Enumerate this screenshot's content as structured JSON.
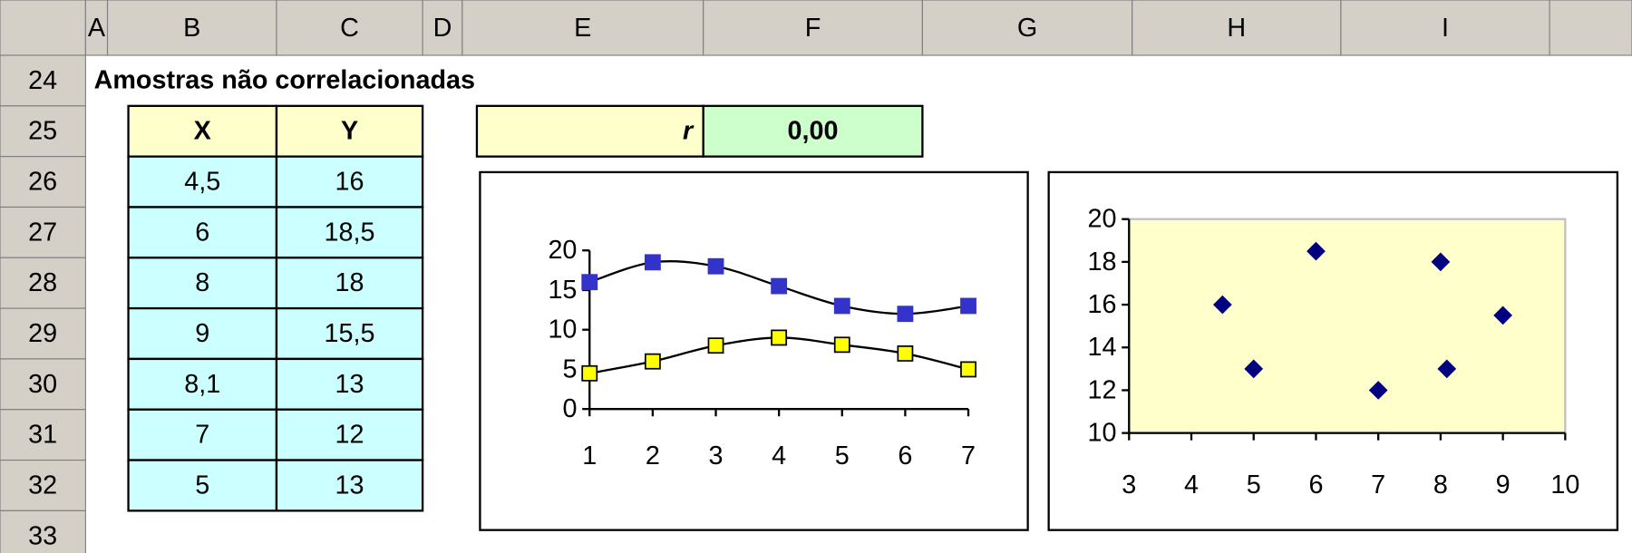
{
  "columns": [
    "A",
    "B",
    "C",
    "D",
    "E",
    "F",
    "G",
    "H",
    "I"
  ],
  "rows": [
    24,
    25,
    26,
    27,
    28,
    29,
    30,
    31,
    32,
    33
  ],
  "title": "Amostras não correlacionadas",
  "table": {
    "header": [
      "X",
      "Y"
    ],
    "rows": [
      [
        "4,5",
        "16"
      ],
      [
        "6",
        "18,5"
      ],
      [
        "8",
        "18"
      ],
      [
        "9",
        "15,5"
      ],
      [
        "8,1",
        "13"
      ],
      [
        "7",
        "12"
      ],
      [
        "5",
        "13"
      ]
    ]
  },
  "r": {
    "label": "r",
    "value": "0,00"
  },
  "chart_data": [
    {
      "type": "line",
      "categories": [
        1,
        2,
        3,
        4,
        5,
        6,
        7
      ],
      "series": [
        {
          "color": "#3333cc",
          "values": [
            16,
            18.5,
            18,
            15.5,
            13,
            12,
            13
          ]
        },
        {
          "color": "#ffff00",
          "values": [
            4.5,
            6,
            8,
            9,
            8.1,
            7,
            5
          ]
        }
      ],
      "ylim": [
        0,
        20
      ],
      "yticks": [
        0,
        5,
        10,
        15,
        20
      ],
      "smooth": true
    },
    {
      "type": "scatter",
      "color": "#000080",
      "plot_background": "#ffffcc",
      "x": [
        4.5,
        6,
        8,
        9,
        8.1,
        7,
        5
      ],
      "values": [
        16,
        18.5,
        18,
        15.5,
        13,
        12,
        13
      ],
      "xlim": [
        3,
        10
      ],
      "xticks": [
        3,
        4,
        5,
        6,
        7,
        8,
        9,
        10
      ],
      "ylim": [
        10,
        20
      ],
      "yticks": [
        10,
        12,
        14,
        16,
        18,
        20
      ]
    }
  ]
}
